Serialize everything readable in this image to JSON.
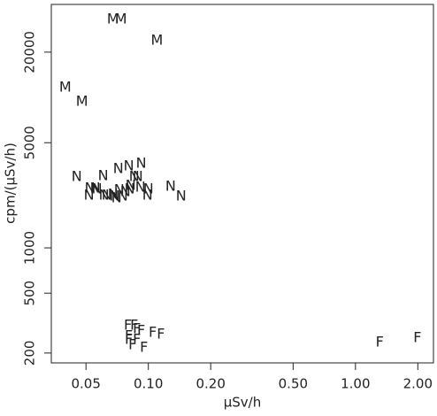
{
  "chart_data": {
    "type": "scatter",
    "xlabel": "μSv/h",
    "ylabel": "cpm/(μSv/h)",
    "xscale": "log",
    "yscale": "log",
    "xlim": [
      0.034,
      2.38
    ],
    "ylim": [
      172,
      41500
    ],
    "xticks": [
      0.05,
      {
        "value": 0.1,
        "label": "0.10"
      },
      {
        "value": 0.2,
        "label": "0.20"
      },
      {
        "value": 0.5,
        "label": "0.50"
      },
      {
        "value": 1,
        "label": "1.00"
      },
      {
        "value": 2,
        "label": "2.00"
      }
    ],
    "yticks": [
      200,
      500,
      1000,
      5000,
      20000
    ],
    "series": [
      {
        "marker": "M",
        "color": "#e8262b",
        "x": [
          0.0675,
          0.0737,
          0.11,
          0.0397,
          0.0478
        ],
        "y": [
          32900,
          32900,
          23800,
          11600,
          9350
        ]
      },
      {
        "marker": "N",
        "color": "#2a52e0",
        "x": [
          0.0451,
          0.0522,
          0.0554,
          0.0517,
          0.0565,
          0.0605,
          0.0611,
          0.063,
          0.0688,
          0.0716,
          0.0723,
          0.0775,
          0.0805,
          0.0813,
          0.0855,
          0.0889,
          0.0916,
          0.0924,
          0.0822,
          0.1,
          0.099,
          0.128,
          0.144,
          0.0675,
          0.0702,
          0.0752
        ],
        "y": [
          2955,
          2480,
          2480,
          2220,
          2445,
          2995,
          2220,
          2220,
          2195,
          3340,
          2410,
          2350,
          3475,
          2445,
          2955,
          2955,
          2510,
          3620,
          2580,
          2445,
          2220,
          2545,
          2195,
          2255,
          2135,
          2195
        ]
      },
      {
        "marker": "F",
        "color": "#222222",
        "x": [
          0.0797,
          0.0855,
          0.088,
          0.0805,
          0.0924,
          0.105,
          0.115,
          0.0805,
          0.088,
          0.0838,
          0.0952,
          1.31,
          1.99
        ],
        "y": [
          303,
          303,
          288,
          258,
          281,
          272,
          265,
          245,
          245,
          225,
          216,
          235,
          251
        ]
      }
    ]
  }
}
